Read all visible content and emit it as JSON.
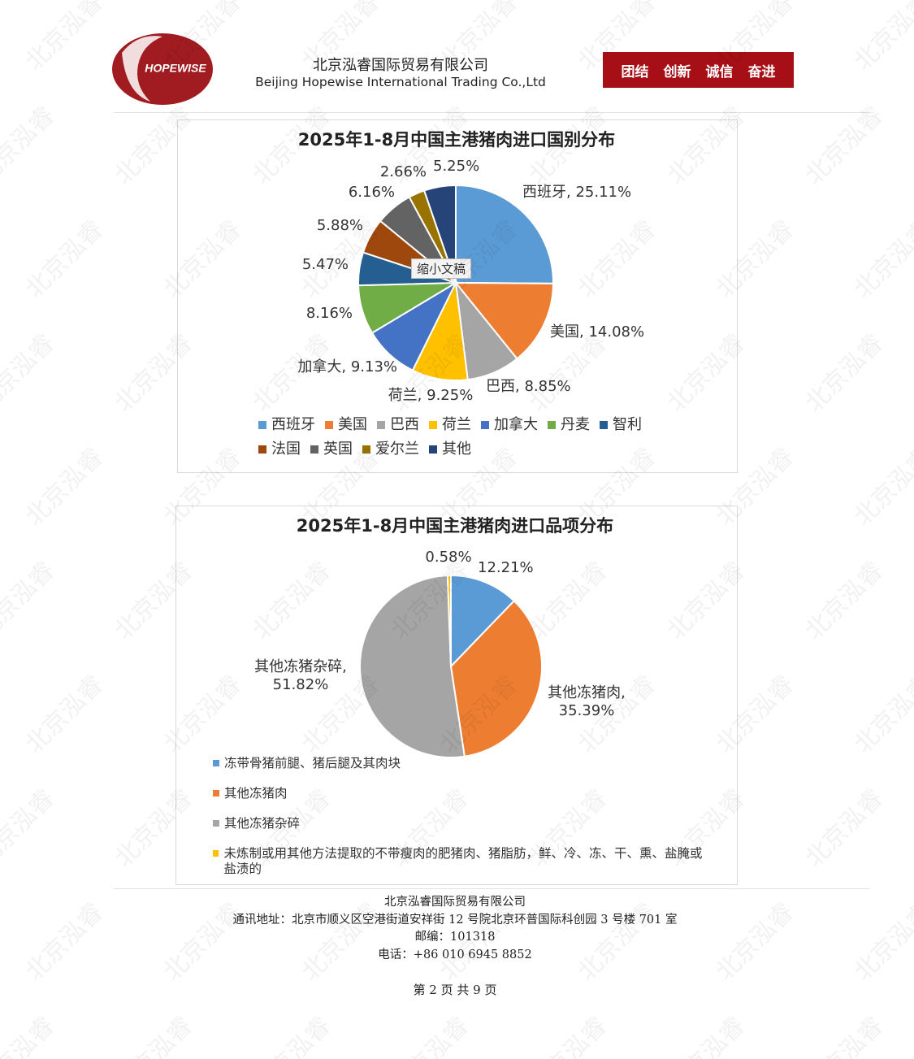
{
  "header": {
    "logo_text": "HOPEWISE",
    "company_cn": "北京泓睿国际贸易有限公司",
    "company_en": "Beijing Hopewise International Trading Co.,Ltd",
    "slogan": [
      "团结",
      "创新",
      "诚信",
      "奋进"
    ]
  },
  "watermark": "北京泓睿",
  "tooltip": "缩小文稿",
  "chart_data": [
    {
      "type": "pie",
      "title": "2025年1-8月中国主港猪肉进口国别分布",
      "categories": [
        "西班牙",
        "美国",
        "巴西",
        "荷兰",
        "加拿大",
        "丹麦",
        "智利",
        "法国",
        "英国",
        "爱尔兰",
        "其他"
      ],
      "values": [
        25.11,
        14.08,
        8.85,
        9.25,
        9.13,
        8.16,
        5.47,
        5.88,
        6.16,
        2.66,
        5.25
      ],
      "value_labels": [
        "西班牙, 25.11%",
        "美国, 14.08%",
        "巴西, 8.85%",
        "荷兰, 9.25%",
        "加拿大, 9.13%",
        "8.16%",
        "5.47%",
        "5.88%",
        "6.16%",
        "2.66%",
        "5.25%"
      ],
      "colors": [
        "#5b9bd5",
        "#ed7d31",
        "#a5a5a5",
        "#ffc000",
        "#4472c4",
        "#70ad47",
        "#255e91",
        "#9e480e",
        "#636363",
        "#997300",
        "#264478"
      ]
    },
    {
      "type": "pie",
      "title": "2025年1-8月中国主港猪肉进口品项分布",
      "categories": [
        "冻带骨猪前腿、猪后腿及其肉块",
        "其他冻猪肉",
        "其他冻猪杂碎",
        "未炼制或用其他方法提取的不带瘦肉的肥猪肉、猪脂肪，鲜、冷、冻、干、熏、盐腌或盐渍的"
      ],
      "values": [
        12.21,
        35.39,
        51.82,
        0.58
      ],
      "value_labels": [
        "12.21%",
        "其他冻猪肉,\n35.39%",
        "其他冻猪杂碎,\n51.82%",
        "0.58%"
      ],
      "colors": [
        "#5b9bd5",
        "#ed7d31",
        "#a5a5a5",
        "#ffc000"
      ]
    }
  ],
  "footer": {
    "company": "北京泓睿国际贸易有限公司",
    "address": "通讯地址：北京市顺义区空港街道安祥街 12 号院北京环普国际科创园 3 号楼 701 室",
    "postcode": "邮编：101318",
    "phone": "电话：+86 010 6945 8852",
    "page": "第 2 页 共 9 页"
  }
}
